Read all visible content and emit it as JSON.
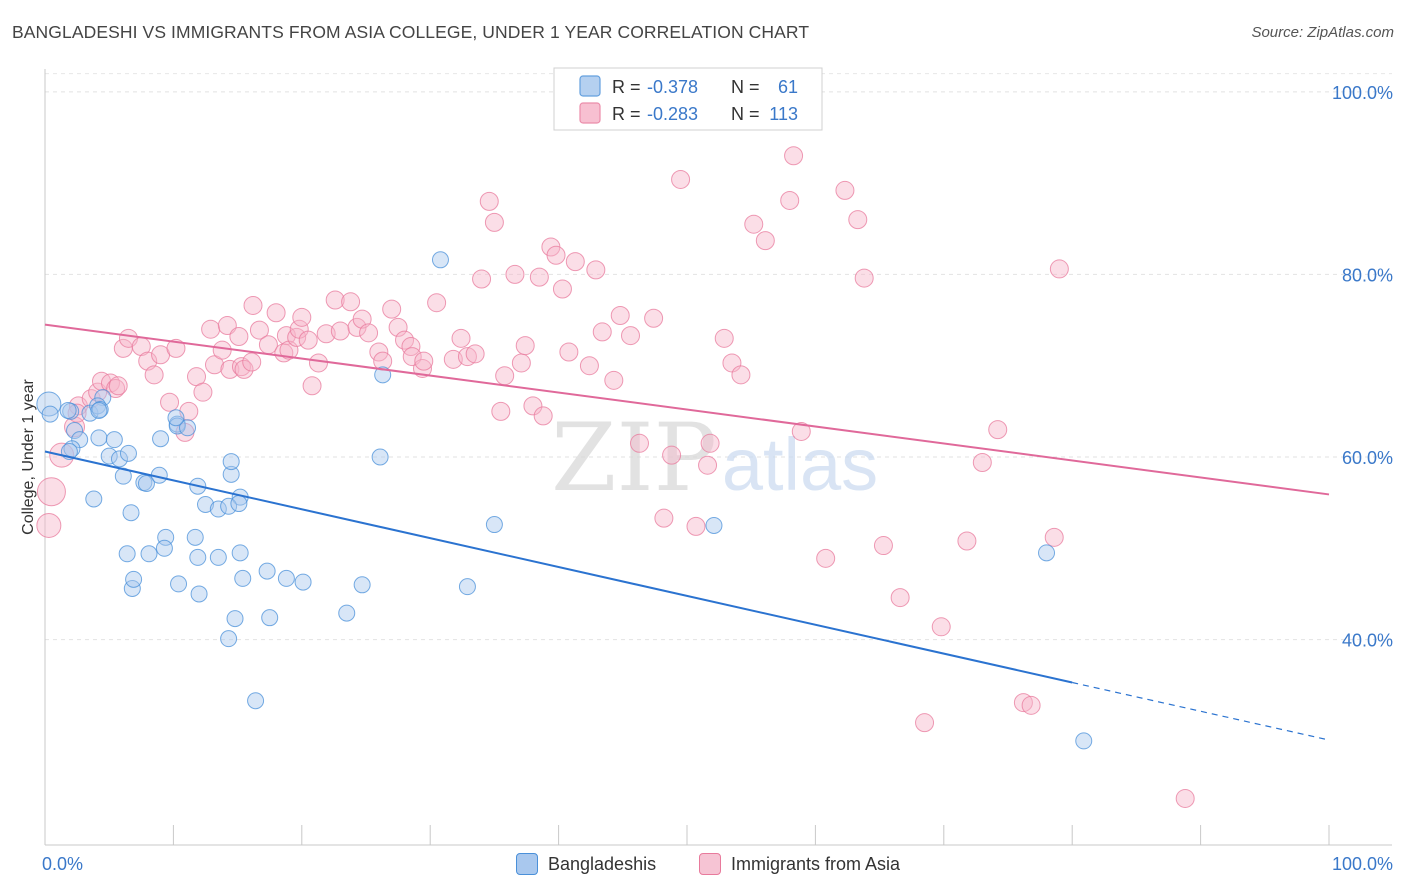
{
  "header": {
    "title": "BANGLADESHI VS IMMIGRANTS FROM ASIA COLLEGE, UNDER 1 YEAR CORRELATION CHART",
    "source": "Source: ZipAtlas.com"
  },
  "watermark": {
    "zip": "ZIP",
    "atlas": "atlas"
  },
  "legend": {
    "items": [
      {
        "r_label": "R = ",
        "r_value": "-0.378",
        "n_label": "N = ",
        "n_value": "61"
      },
      {
        "r_label": "R = ",
        "r_value": "-0.283",
        "n_label": "N = ",
        "n_value": "113"
      }
    ]
  },
  "colors": {
    "blue": "#4a90d9",
    "blue_fill": "#a9c8ee",
    "blue_line": "#2b73d0",
    "pink": "#e87a9c",
    "pink_fill": "#f6b6ca",
    "pink_line": "#e0699a",
    "value_text": "#3a78c9"
  },
  "chart_data": {
    "type": "scatter",
    "title": "BANGLADESHI VS IMMIGRANTS FROM ASIA COLLEGE, UNDER 1 YEAR CORRELATION CHART",
    "xlabel": "",
    "ylabel": "College, Under 1 year",
    "xlim": [
      0,
      100
    ],
    "ylim": [
      17.5,
      102.5
    ],
    "x_ticks": [
      0,
      100
    ],
    "x_tick_labels": [
      "0.0%",
      "100.0%"
    ],
    "y_ticks": [
      40,
      60,
      80,
      100
    ],
    "y_tick_labels": [
      "40.0%",
      "60.0%",
      "80.0%",
      "100.0%"
    ],
    "grid": true,
    "series": [
      {
        "name": "Bangladeshis",
        "color": "blue",
        "R": -0.378,
        "N": 61,
        "trend": {
          "x0": 0,
          "y0": 60.6,
          "x1": 80,
          "y1": 35.3,
          "dash_to_x": 100,
          "dash_to_y": 29.0
        },
        "points": [
          [
            0.3,
            65.8,
            12
          ],
          [
            0.4,
            64.7,
            8
          ],
          [
            2.0,
            65.0,
            8
          ],
          [
            3.5,
            64.8,
            8
          ],
          [
            2.3,
            62.9,
            8
          ],
          [
            4.5,
            66.5,
            8
          ],
          [
            1.8,
            65.1,
            8
          ],
          [
            2.7,
            61.9,
            8
          ],
          [
            4.1,
            65.6,
            8
          ],
          [
            4.3,
            65.2,
            8
          ],
          [
            2.1,
            60.9,
            8
          ],
          [
            4.2,
            65.1,
            8
          ],
          [
            1.9,
            60.6,
            8
          ],
          [
            3.8,
            55.4,
            8
          ],
          [
            4.2,
            62.1,
            8
          ],
          [
            5.4,
            61.9,
            8
          ],
          [
            5.0,
            60.1,
            8
          ],
          [
            5.8,
            59.8,
            8
          ],
          [
            6.5,
            60.4,
            8
          ],
          [
            7.7,
            57.2,
            8
          ],
          [
            6.1,
            57.9,
            8
          ],
          [
            6.7,
            53.9,
            8
          ],
          [
            7.9,
            57.1,
            8
          ],
          [
            9.0,
            62.0,
            8
          ],
          [
            8.9,
            58.0,
            8
          ],
          [
            10.3,
            63.6,
            8
          ],
          [
            10.3,
            63.4,
            8
          ],
          [
            11.1,
            63.2,
            8
          ],
          [
            10.2,
            64.3,
            8
          ],
          [
            11.9,
            56.8,
            8
          ],
          [
            12.5,
            54.8,
            8
          ],
          [
            13.5,
            54.3,
            8
          ],
          [
            14.5,
            58.1,
            8
          ],
          [
            14.5,
            59.5,
            8
          ],
          [
            15.2,
            55.6,
            8
          ],
          [
            14.3,
            54.6,
            8
          ],
          [
            9.4,
            51.2,
            8
          ],
          [
            9.3,
            50.0,
            8
          ],
          [
            11.7,
            51.2,
            8
          ],
          [
            8.1,
            49.4,
            8
          ],
          [
            6.4,
            49.4,
            8
          ],
          [
            6.8,
            45.6,
            8
          ],
          [
            6.9,
            46.6,
            8
          ],
          [
            10.4,
            46.1,
            8
          ],
          [
            11.9,
            49.0,
            8
          ],
          [
            13.5,
            49.0,
            8
          ],
          [
            15.1,
            54.9,
            8
          ],
          [
            15.2,
            49.5,
            8
          ],
          [
            15.4,
            46.7,
            8
          ],
          [
            17.3,
            47.5,
            8
          ],
          [
            12.0,
            45.0,
            8
          ],
          [
            14.8,
            42.3,
            8
          ],
          [
            17.5,
            42.4,
            8
          ],
          [
            14.3,
            40.1,
            8
          ],
          [
            16.4,
            33.3,
            8
          ],
          [
            18.8,
            46.7,
            8
          ],
          [
            20.1,
            46.3,
            8
          ],
          [
            24.7,
            46.0,
            8
          ],
          [
            26.1,
            60.0,
            8
          ],
          [
            26.3,
            69.0,
            8
          ],
          [
            30.8,
            81.6,
            8
          ],
          [
            23.5,
            42.9,
            8
          ],
          [
            32.9,
            45.8,
            8
          ],
          [
            35.0,
            52.6,
            8
          ],
          [
            52.1,
            52.5,
            8
          ],
          [
            78.0,
            49.5,
            8
          ],
          [
            80.9,
            28.9,
            8
          ]
        ]
      },
      {
        "name": "Immigrants from Asia",
        "color": "pink",
        "R": -0.283,
        "N": 113,
        "trend": {
          "x0": 0,
          "y0": 74.5,
          "x1": 100,
          "y1": 55.9
        },
        "points": [
          [
            0.5,
            56.2,
            14
          ],
          [
            0.3,
            52.5,
            12
          ],
          [
            1.3,
            60.2,
            12
          ],
          [
            2.3,
            63.3,
            10
          ],
          [
            2.6,
            65.6,
            9
          ],
          [
            2.5,
            64.8,
            9
          ],
          [
            3.6,
            66.4,
            9
          ],
          [
            4.1,
            67.1,
            9
          ],
          [
            4.4,
            68.3,
            9
          ],
          [
            5.1,
            68.1,
            9
          ],
          [
            5.5,
            67.5,
            9
          ],
          [
            5.7,
            67.8,
            9
          ],
          [
            6.1,
            71.9,
            9
          ],
          [
            6.5,
            73.0,
            9
          ],
          [
            7.5,
            72.1,
            9
          ],
          [
            8.0,
            70.5,
            9
          ],
          [
            8.5,
            69.0,
            9
          ],
          [
            9.0,
            71.2,
            9
          ],
          [
            9.7,
            66.0,
            9
          ],
          [
            10.2,
            71.9,
            9
          ],
          [
            10.9,
            62.7,
            9
          ],
          [
            11.2,
            65.0,
            9
          ],
          [
            11.8,
            68.8,
            9
          ],
          [
            12.3,
            67.1,
            9
          ],
          [
            12.9,
            74.0,
            9
          ],
          [
            13.2,
            70.1,
            9
          ],
          [
            13.8,
            71.7,
            9
          ],
          [
            14.2,
            74.4,
            9
          ],
          [
            14.4,
            69.6,
            9
          ],
          [
            15.1,
            73.2,
            9
          ],
          [
            15.3,
            69.9,
            9
          ],
          [
            15.5,
            69.6,
            9
          ],
          [
            16.1,
            70.4,
            9
          ],
          [
            16.2,
            76.6,
            9
          ],
          [
            16.7,
            73.9,
            9
          ],
          [
            17.4,
            72.3,
            9
          ],
          [
            18.0,
            75.8,
            9
          ],
          [
            18.6,
            71.4,
            9
          ],
          [
            18.8,
            73.3,
            9
          ],
          [
            19.0,
            71.7,
            9
          ],
          [
            19.6,
            73.1,
            9
          ],
          [
            19.8,
            74.0,
            9
          ],
          [
            20.0,
            75.3,
            9
          ],
          [
            20.5,
            72.8,
            9
          ],
          [
            20.8,
            67.8,
            9
          ],
          [
            21.3,
            70.3,
            9
          ],
          [
            21.9,
            73.5,
            9
          ],
          [
            22.6,
            77.2,
            9
          ],
          [
            23.0,
            73.8,
            9
          ],
          [
            23.8,
            77.0,
            9
          ],
          [
            24.3,
            74.2,
            9
          ],
          [
            24.7,
            75.1,
            9
          ],
          [
            25.2,
            73.6,
            9
          ],
          [
            26.0,
            71.5,
            9
          ],
          [
            26.3,
            70.5,
            9
          ],
          [
            27.0,
            76.2,
            9
          ],
          [
            27.5,
            74.2,
            9
          ],
          [
            28.0,
            72.8,
            9
          ],
          [
            28.5,
            72.1,
            9
          ],
          [
            28.6,
            71.0,
            9
          ],
          [
            29.4,
            69.7,
            9
          ],
          [
            29.5,
            70.5,
            9
          ],
          [
            30.5,
            76.9,
            9
          ],
          [
            31.8,
            70.7,
            9
          ],
          [
            32.4,
            73.0,
            9
          ],
          [
            32.9,
            71.0,
            9
          ],
          [
            33.5,
            71.3,
            9
          ],
          [
            34.0,
            79.5,
            9
          ],
          [
            34.6,
            88.0,
            9
          ],
          [
            35.0,
            85.7,
            9
          ],
          [
            35.5,
            65.0,
            9
          ],
          [
            35.8,
            68.9,
            9
          ],
          [
            36.6,
            80.0,
            9
          ],
          [
            37.1,
            70.3,
            9
          ],
          [
            37.4,
            72.2,
            9
          ],
          [
            38.0,
            65.6,
            9
          ],
          [
            38.5,
            79.7,
            9
          ],
          [
            38.8,
            64.5,
            9
          ],
          [
            39.4,
            83.0,
            9
          ],
          [
            39.8,
            82.1,
            9
          ],
          [
            40.3,
            78.4,
            9
          ],
          [
            40.8,
            71.5,
            9
          ],
          [
            41.3,
            81.4,
            9
          ],
          [
            42.4,
            70.0,
            9
          ],
          [
            42.9,
            80.5,
            9
          ],
          [
            43.4,
            73.7,
            9
          ],
          [
            44.3,
            68.4,
            9
          ],
          [
            44.8,
            75.5,
            9
          ],
          [
            45.6,
            73.3,
            9
          ],
          [
            46.3,
            61.5,
            9
          ],
          [
            47.4,
            75.2,
            9
          ],
          [
            48.2,
            53.3,
            9
          ],
          [
            48.8,
            60.2,
            9
          ],
          [
            49.5,
            90.4,
            9
          ],
          [
            50.7,
            52.4,
            9
          ],
          [
            51.6,
            59.1,
            9
          ],
          [
            51.8,
            61.5,
            9
          ],
          [
            52.9,
            73.0,
            9
          ],
          [
            53.5,
            70.3,
            9
          ],
          [
            54.2,
            69.0,
            9
          ],
          [
            55.2,
            85.5,
            9
          ],
          [
            56.1,
            83.7,
            9
          ],
          [
            58.9,
            62.8,
            9
          ],
          [
            58.0,
            88.1,
            9
          ],
          [
            58.3,
            93.0,
            9
          ],
          [
            60.8,
            48.9,
            9
          ],
          [
            62.3,
            89.2,
            9
          ],
          [
            63.3,
            86.0,
            9
          ],
          [
            63.8,
            79.6,
            9
          ],
          [
            65.3,
            50.3,
            9
          ],
          [
            66.6,
            44.6,
            9
          ],
          [
            68.5,
            30.9,
            9
          ],
          [
            69.8,
            41.4,
            9
          ],
          [
            71.8,
            50.8,
            9
          ],
          [
            73.0,
            59.4,
            9
          ],
          [
            74.2,
            63.0,
            9
          ],
          [
            76.2,
            33.1,
            9
          ],
          [
            76.8,
            32.8,
            9
          ],
          [
            78.6,
            51.2,
            9
          ],
          [
            79.0,
            80.6,
            9
          ],
          [
            88.8,
            22.6,
            9
          ]
        ]
      }
    ]
  },
  "bottom_legend": {
    "items": [
      {
        "label": "Bangladeshis"
      },
      {
        "label": "Immigrants from Asia"
      }
    ]
  }
}
